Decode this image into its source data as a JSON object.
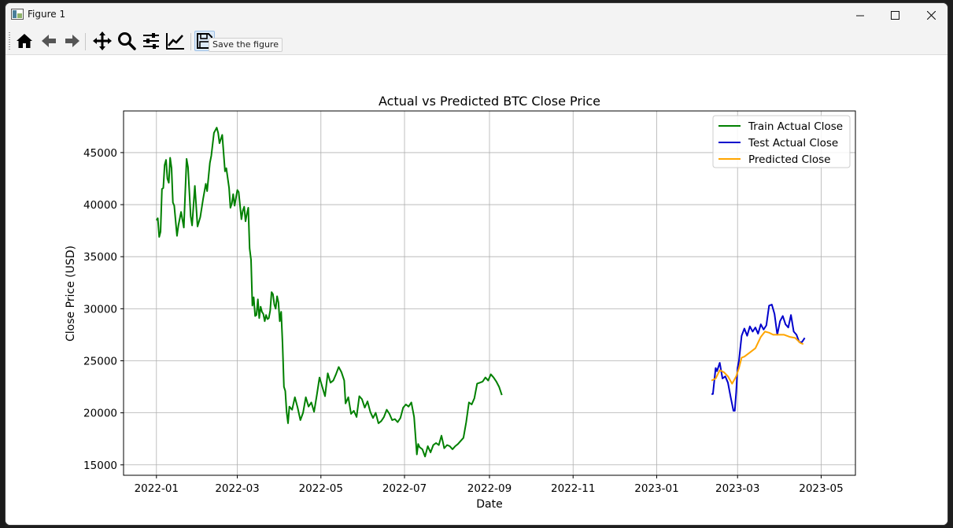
{
  "window": {
    "title": "Figure 1"
  },
  "toolbar": {
    "buttons": [
      {
        "name": "home-icon",
        "label": "Home"
      },
      {
        "name": "back-icon",
        "label": "Back"
      },
      {
        "name": "forward-icon",
        "label": "Forward"
      },
      {
        "name": "pan-icon",
        "label": "Pan"
      },
      {
        "name": "zoom-icon",
        "label": "Zoom"
      },
      {
        "name": "subplots-icon",
        "label": "Subplots"
      },
      {
        "name": "customize-icon",
        "label": "Customize"
      },
      {
        "name": "save-icon",
        "label": "Save"
      }
    ],
    "tooltip": "Save the figure"
  },
  "chart_data": {
    "type": "line",
    "title": "Actual vs Predicted BTC Close Price",
    "xlabel": "Date",
    "ylabel": "Close Price (USD)",
    "xticks": [
      "2022-01",
      "2022-03",
      "2022-05",
      "2022-07",
      "2022-09",
      "2022-11",
      "2023-01",
      "2023-03",
      "2023-05"
    ],
    "yticks": [
      "15000",
      "20000",
      "25000",
      "30000",
      "35000",
      "40000",
      "45000"
    ],
    "ylim": [
      14000,
      49000
    ],
    "xlim": [
      "2021-12-08",
      "2023-05-26"
    ],
    "grid": true,
    "legend_position": "upper right",
    "series": [
      {
        "name": "Train Actual Close",
        "color": "#008000",
        "points": [
          [
            "2022-01-01",
            38500
          ],
          [
            "2022-01-02",
            38700
          ],
          [
            "2022-01-03",
            36900
          ],
          [
            "2022-01-04",
            37400
          ],
          [
            "2022-01-05",
            41500
          ],
          [
            "2022-01-06",
            41600
          ],
          [
            "2022-01-07",
            43800
          ],
          [
            "2022-01-08",
            44300
          ],
          [
            "2022-01-09",
            42500
          ],
          [
            "2022-01-10",
            42100
          ],
          [
            "2022-01-11",
            44500
          ],
          [
            "2022-01-12",
            43500
          ],
          [
            "2022-01-13",
            40200
          ],
          [
            "2022-01-14",
            39900
          ],
          [
            "2022-01-16",
            37000
          ],
          [
            "2022-01-17",
            38000
          ],
          [
            "2022-01-19",
            39300
          ],
          [
            "2022-01-21",
            37800
          ],
          [
            "2022-01-23",
            44400
          ],
          [
            "2022-01-24",
            43600
          ],
          [
            "2022-01-26",
            38900
          ],
          [
            "2022-01-27",
            38000
          ],
          [
            "2022-01-29",
            41800
          ],
          [
            "2022-01-31",
            37900
          ],
          [
            "2022-02-02",
            38800
          ],
          [
            "2022-02-04",
            40500
          ],
          [
            "2022-02-06",
            42000
          ],
          [
            "2022-02-07",
            41300
          ],
          [
            "2022-02-09",
            44000
          ],
          [
            "2022-02-10",
            44700
          ],
          [
            "2022-02-12",
            46900
          ],
          [
            "2022-02-14",
            47400
          ],
          [
            "2022-02-15",
            46900
          ],
          [
            "2022-02-16",
            45900
          ],
          [
            "2022-02-18",
            46700
          ],
          [
            "2022-02-20",
            43200
          ],
          [
            "2022-02-21",
            43500
          ],
          [
            "2022-02-23",
            41600
          ],
          [
            "2022-02-24",
            39700
          ],
          [
            "2022-02-25",
            40100
          ],
          [
            "2022-02-26",
            41000
          ],
          [
            "2022-02-27",
            39900
          ],
          [
            "2022-03-01",
            41400
          ],
          [
            "2022-03-02",
            41200
          ],
          [
            "2022-03-04",
            38600
          ],
          [
            "2022-03-05",
            39400
          ],
          [
            "2022-03-06",
            39800
          ],
          [
            "2022-03-07",
            38400
          ],
          [
            "2022-03-08",
            39100
          ],
          [
            "2022-03-09",
            39700
          ],
          [
            "2022-03-10",
            35800
          ],
          [
            "2022-03-11",
            34700
          ],
          [
            "2022-03-12",
            30300
          ],
          [
            "2022-03-13",
            31100
          ],
          [
            "2022-03-14",
            29300
          ],
          [
            "2022-03-15",
            29400
          ],
          [
            "2022-03-16",
            30900
          ],
          [
            "2022-03-17",
            29100
          ],
          [
            "2022-03-18",
            30200
          ],
          [
            "2022-03-19",
            29700
          ],
          [
            "2022-03-20",
            29500
          ],
          [
            "2022-03-21",
            28800
          ],
          [
            "2022-03-22",
            29400
          ],
          [
            "2022-03-23",
            29000
          ],
          [
            "2022-03-24",
            29100
          ],
          [
            "2022-03-25",
            29800
          ],
          [
            "2022-03-26",
            31600
          ],
          [
            "2022-03-27",
            31400
          ],
          [
            "2022-03-28",
            30400
          ],
          [
            "2022-03-29",
            30000
          ],
          [
            "2022-03-30",
            31200
          ],
          [
            "2022-03-31",
            30600
          ],
          [
            "2022-04-01",
            28800
          ],
          [
            "2022-04-02",
            29700
          ],
          [
            "2022-04-03",
            26700
          ],
          [
            "2022-04-04",
            22500
          ],
          [
            "2022-04-05",
            22100
          ],
          [
            "2022-04-06",
            20100
          ],
          [
            "2022-04-07",
            19000
          ],
          [
            "2022-04-08",
            20600
          ],
          [
            "2022-04-10",
            20300
          ],
          [
            "2022-04-12",
            21500
          ],
          [
            "2022-04-14",
            20500
          ],
          [
            "2022-04-16",
            19300
          ],
          [
            "2022-04-18",
            20000
          ],
          [
            "2022-04-20",
            21500
          ],
          [
            "2022-04-22",
            20600
          ],
          [
            "2022-04-24",
            21000
          ],
          [
            "2022-04-26",
            20100
          ],
          [
            "2022-04-28",
            21700
          ],
          [
            "2022-04-30",
            23400
          ],
          [
            "2022-05-02",
            22500
          ],
          [
            "2022-05-04",
            21600
          ],
          [
            "2022-05-06",
            23800
          ],
          [
            "2022-05-08",
            22900
          ],
          [
            "2022-05-10",
            23100
          ],
          [
            "2022-05-12",
            23700
          ],
          [
            "2022-05-14",
            24400
          ],
          [
            "2022-05-16",
            23900
          ],
          [
            "2022-05-18",
            23100
          ],
          [
            "2022-05-19",
            20900
          ],
          [
            "2022-05-21",
            21500
          ],
          [
            "2022-05-23",
            19900
          ],
          [
            "2022-05-25",
            20200
          ],
          [
            "2022-05-27",
            19600
          ],
          [
            "2022-05-29",
            21600
          ],
          [
            "2022-05-31",
            21300
          ],
          [
            "2022-06-02",
            20500
          ],
          [
            "2022-06-04",
            21100
          ],
          [
            "2022-06-06",
            20100
          ],
          [
            "2022-06-08",
            19500
          ],
          [
            "2022-06-10",
            20000
          ],
          [
            "2022-06-12",
            19000
          ],
          [
            "2022-06-14",
            19200
          ],
          [
            "2022-06-16",
            19600
          ],
          [
            "2022-06-18",
            20300
          ],
          [
            "2022-06-20",
            19900
          ],
          [
            "2022-06-22",
            19300
          ],
          [
            "2022-06-24",
            19400
          ],
          [
            "2022-06-26",
            19100
          ],
          [
            "2022-06-28",
            19500
          ],
          [
            "2022-06-30",
            20500
          ],
          [
            "2022-07-02",
            20800
          ],
          [
            "2022-07-04",
            20600
          ],
          [
            "2022-07-06",
            21000
          ],
          [
            "2022-07-08",
            19600
          ],
          [
            "2022-07-10",
            16000
          ],
          [
            "2022-07-11",
            17000
          ],
          [
            "2022-07-12",
            16700
          ],
          [
            "2022-07-14",
            16500
          ],
          [
            "2022-07-16",
            15800
          ],
          [
            "2022-07-18",
            16800
          ],
          [
            "2022-07-20",
            16200
          ],
          [
            "2022-07-22",
            16900
          ],
          [
            "2022-07-24",
            17100
          ],
          [
            "2022-07-26",
            16900
          ],
          [
            "2022-07-28",
            17800
          ],
          [
            "2022-07-30",
            16600
          ],
          [
            "2022-08-01",
            16900
          ],
          [
            "2022-08-03",
            16800
          ],
          [
            "2022-08-05",
            16500
          ],
          [
            "2022-08-07",
            16800
          ],
          [
            "2022-08-09",
            17000
          ],
          [
            "2022-08-11",
            17300
          ],
          [
            "2022-08-13",
            17600
          ],
          [
            "2022-08-15",
            19100
          ],
          [
            "2022-08-17",
            21000
          ],
          [
            "2022-08-19",
            20800
          ],
          [
            "2022-08-21",
            21400
          ],
          [
            "2022-08-23",
            22800
          ],
          [
            "2022-08-25",
            22900
          ],
          [
            "2022-08-27",
            23000
          ],
          [
            "2022-08-29",
            23400
          ],
          [
            "2022-08-31",
            23100
          ],
          [
            "2022-09-02",
            23700
          ],
          [
            "2022-09-04",
            23400
          ],
          [
            "2022-09-06",
            23000
          ],
          [
            "2022-09-08",
            22500
          ],
          [
            "2022-09-10",
            21700
          ]
        ]
      },
      {
        "name": "Test Actual Close",
        "color": "#0000cc",
        "points": [
          [
            "2023-02-10",
            21800
          ],
          [
            "2023-02-11",
            21800
          ],
          [
            "2023-02-13",
            24300
          ],
          [
            "2023-02-14",
            24000
          ],
          [
            "2023-02-16",
            24800
          ],
          [
            "2023-02-18",
            23300
          ],
          [
            "2023-02-20",
            23500
          ],
          [
            "2023-02-22",
            22900
          ],
          [
            "2023-02-24",
            21500
          ],
          [
            "2023-02-26",
            20200
          ],
          [
            "2023-02-27",
            20200
          ],
          [
            "2023-02-28",
            22000
          ],
          [
            "2023-03-01",
            24300
          ],
          [
            "2023-03-02",
            25000
          ],
          [
            "2023-03-04",
            27400
          ],
          [
            "2023-03-06",
            28100
          ],
          [
            "2023-03-08",
            27400
          ],
          [
            "2023-03-10",
            28300
          ],
          [
            "2023-03-12",
            27800
          ],
          [
            "2023-03-14",
            28200
          ],
          [
            "2023-03-16",
            27600
          ],
          [
            "2023-03-18",
            28500
          ],
          [
            "2023-03-20",
            28000
          ],
          [
            "2023-03-22",
            28400
          ],
          [
            "2023-03-24",
            30300
          ],
          [
            "2023-03-26",
            30400
          ],
          [
            "2023-03-28",
            29500
          ],
          [
            "2023-03-30",
            27500
          ],
          [
            "2023-04-01",
            28800
          ],
          [
            "2023-04-03",
            29300
          ],
          [
            "2023-04-05",
            28500
          ],
          [
            "2023-04-07",
            28200
          ],
          [
            "2023-04-09",
            29400
          ],
          [
            "2023-04-11",
            27800
          ],
          [
            "2023-04-13",
            27500
          ],
          [
            "2023-04-15",
            26800
          ],
          [
            "2023-04-17",
            26800
          ],
          [
            "2023-04-19",
            27200
          ]
        ]
      },
      {
        "name": "Predicted Close",
        "color": "#ffa500",
        "points": [
          [
            "2023-02-10",
            23100
          ],
          [
            "2023-02-13",
            23300
          ],
          [
            "2023-02-16",
            24100
          ],
          [
            "2023-02-19",
            23900
          ],
          [
            "2023-02-22",
            23500
          ],
          [
            "2023-02-25",
            22800
          ],
          [
            "2023-02-28",
            23500
          ],
          [
            "2023-03-02",
            24300
          ],
          [
            "2023-03-04",
            25300
          ],
          [
            "2023-03-06",
            25400
          ],
          [
            "2023-03-10",
            25800
          ],
          [
            "2023-03-14",
            26200
          ],
          [
            "2023-03-18",
            27300
          ],
          [
            "2023-03-21",
            27800
          ],
          [
            "2023-03-24",
            27700
          ],
          [
            "2023-03-27",
            27500
          ],
          [
            "2023-03-31",
            27500
          ],
          [
            "2023-04-04",
            27500
          ],
          [
            "2023-04-08",
            27300
          ],
          [
            "2023-04-12",
            27200
          ],
          [
            "2023-04-16",
            26700
          ],
          [
            "2023-04-18",
            26600
          ]
        ]
      }
    ]
  }
}
